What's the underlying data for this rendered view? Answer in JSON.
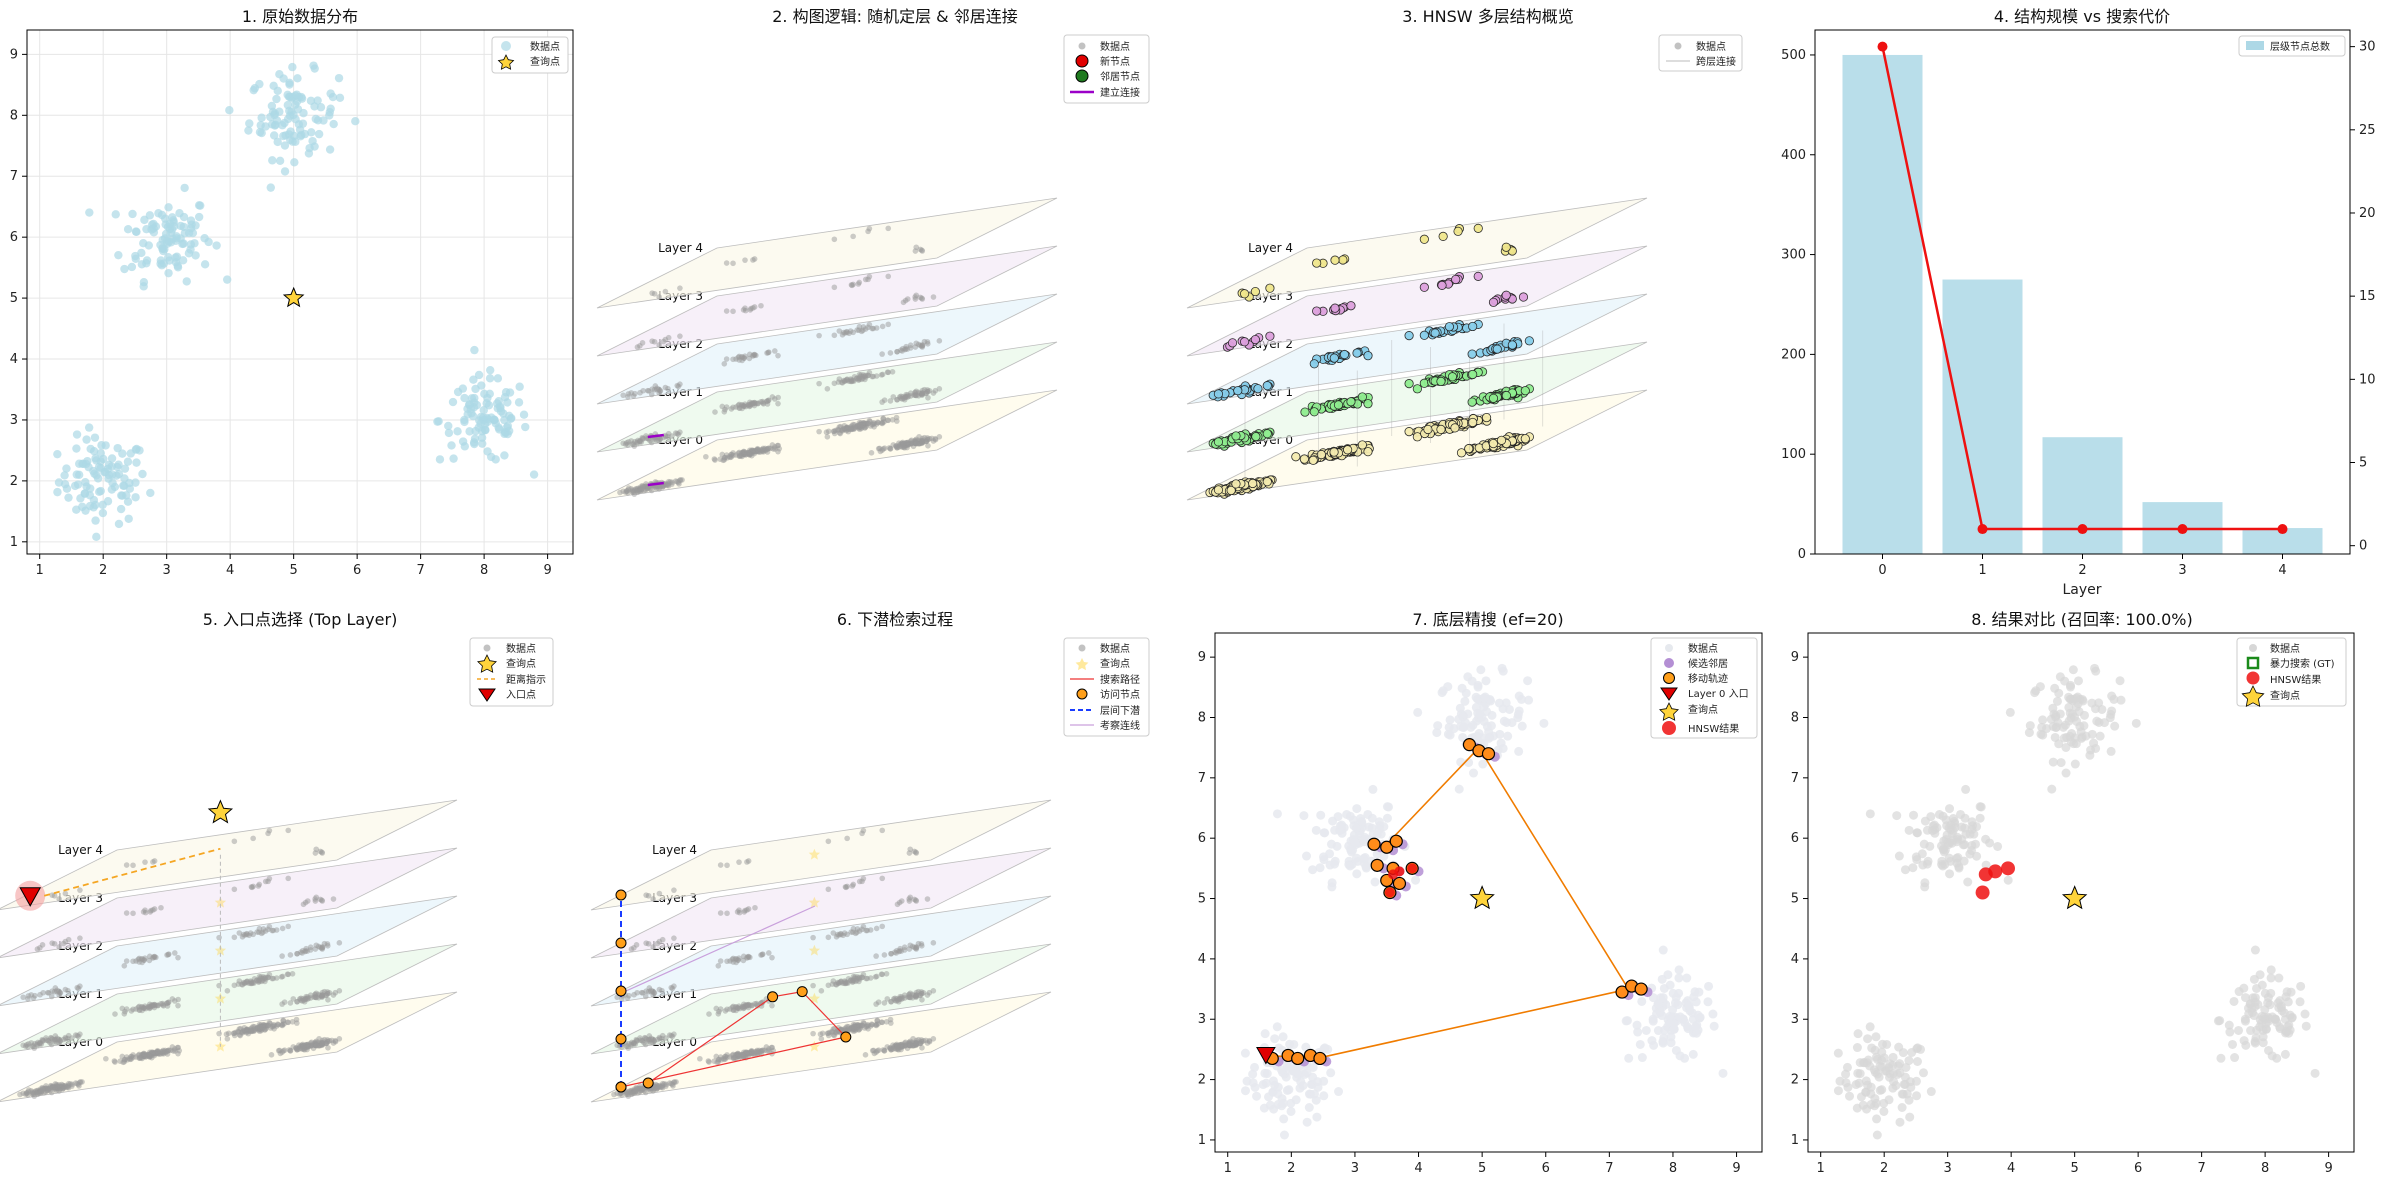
{
  "colors": {
    "data_point": "#add8e6",
    "gray_point": "#9a9a9a",
    "query_star": "#ffd43b",
    "path_orange": "#ff8c1a",
    "new_node": "#e00000",
    "neighbor_node": "#1f7a1f",
    "connect_line": "#9b00c8",
    "bar": "#add8e6",
    "cost_line": "#ee1111",
    "layer_fills": [
      "#fffbe5",
      "#e6f7e6",
      "#e4f2fa",
      "#f3e8f6",
      "#fbf8e8"
    ]
  },
  "layer_labels": [
    "Layer 0",
    "Layer 1",
    "Layer 2",
    "Layer 3",
    "Layer 4"
  ],
  "panels": {
    "p1": {
      "title": "1. 原始数据分布",
      "legend": [
        "数据点",
        "查询点"
      ],
      "x_ticks": [
        "1",
        "2",
        "3",
        "4",
        "5",
        "6",
        "7",
        "8",
        "9"
      ],
      "y_ticks": [
        "1",
        "2",
        "3",
        "4",
        "5",
        "6",
        "7",
        "8",
        "9"
      ]
    },
    "p2": {
      "title": "2. 构图逻辑: 随机定层 & 邻居连接",
      "legend": [
        "数据点",
        "新节点",
        "邻居节点",
        "建立连接"
      ]
    },
    "p3": {
      "title": "3. HNSW 多层结构概览",
      "legend": [
        "数据点",
        "跨层连接"
      ]
    },
    "p4": {
      "title": "4. 结构规模 vs 搜索代价",
      "legend": [
        "层级节点总数"
      ],
      "xlabel": "Layer",
      "x_ticks": [
        "0",
        "1",
        "2",
        "3",
        "4"
      ],
      "y_ticks": [
        "0",
        "100",
        "200",
        "300",
        "400",
        "500"
      ],
      "y2_ticks": [
        "0",
        "5",
        "10",
        "15",
        "20",
        "25",
        "30"
      ]
    },
    "p5": {
      "title": "5. 入口点选择 (Top Layer)",
      "legend": [
        "数据点",
        "查询点",
        "距离指示",
        "入口点"
      ]
    },
    "p6": {
      "title": "6. 下潜检索过程",
      "legend": [
        "数据点",
        "查询点",
        "搜索路径",
        "访问节点",
        "层间下潜",
        "考察连线"
      ]
    },
    "p7": {
      "title": "7. 底层精搜 (ef=20)",
      "legend": [
        "数据点",
        "候选邻居",
        "移动轨迹",
        "Layer 0 入口",
        "查询点",
        "HNSW结果"
      ],
      "x_ticks": [
        "1",
        "2",
        "3",
        "4",
        "5",
        "6",
        "7",
        "8",
        "9"
      ],
      "y_ticks": [
        "1",
        "2",
        "3",
        "4",
        "5",
        "6",
        "7",
        "8",
        "9"
      ]
    },
    "p8": {
      "title": "8. 结果对比 (召回率: 100.0%)",
      "legend": [
        "数据点",
        "暴力搜索 (GT)",
        "HNSW结果",
        "查询点"
      ],
      "x_ticks": [
        "1",
        "2",
        "3",
        "4",
        "5",
        "6",
        "7",
        "8",
        "9"
      ],
      "y_ticks": [
        "1",
        "2",
        "3",
        "4",
        "5",
        "6",
        "7",
        "8",
        "9"
      ]
    }
  },
  "chart_data": [
    {
      "type": "scatter",
      "title": "1. 原始数据分布",
      "xlim": [
        0.8,
        9.4
      ],
      "ylim": [
        0.8,
        9.4
      ],
      "clusters": [
        {
          "center": [
            2,
            2
          ],
          "n": 100,
          "spread": 0.35
        },
        {
          "center": [
            3,
            6
          ],
          "n": 100,
          "spread": 0.35
        },
        {
          "center": [
            5,
            8
          ],
          "n": 100,
          "spread": 0.35
        },
        {
          "center": [
            8,
            3
          ],
          "n": 100,
          "spread": 0.35
        }
      ],
      "query": [
        5,
        5
      ],
      "series": [
        {
          "name": "数据点"
        },
        {
          "name": "查询点"
        }
      ]
    },
    {
      "type": "bar",
      "title": "4. 结构规模 vs 搜索代价",
      "categories": [
        "0",
        "1",
        "2",
        "3",
        "4"
      ],
      "values": [
        500,
        275,
        117,
        52,
        26
      ],
      "line_values": [
        30,
        1,
        1,
        1,
        1
      ],
      "xlabel": "Layer",
      "ylim": [
        0,
        525
      ],
      "y2lim": [
        -0.5,
        31
      ]
    },
    {
      "type": "scatter",
      "title": "7. 底层精搜 (ef=20)",
      "xlim": [
        0.8,
        9.4
      ],
      "ylim": [
        0.8,
        9.4
      ],
      "query": [
        5,
        5
      ],
      "entry": [
        1.6,
        2.4
      ],
      "trajectory": [
        [
          1.6,
          2.4
        ],
        [
          2.4,
          2.35
        ],
        [
          7.3,
          3.5
        ],
        [
          4.95,
          7.5
        ],
        [
          3.5,
          5.9
        ]
      ],
      "visited": [
        [
          1.7,
          2.35
        ],
        [
          1.95,
          2.4
        ],
        [
          2.1,
          2.35
        ],
        [
          2.3,
          2.4
        ],
        [
          2.45,
          2.35
        ],
        [
          7.2,
          3.45
        ],
        [
          7.35,
          3.55
        ],
        [
          7.5,
          3.5
        ],
        [
          4.8,
          7.55
        ],
        [
          4.95,
          7.45
        ],
        [
          5.1,
          7.4
        ],
        [
          3.3,
          5.9
        ],
        [
          3.5,
          5.85
        ],
        [
          3.65,
          5.95
        ],
        [
          3.35,
          5.55
        ],
        [
          3.6,
          5.5
        ],
        [
          3.9,
          5.5
        ],
        [
          3.5,
          5.3
        ],
        [
          3.7,
          5.25
        ],
        [
          3.55,
          5.1
        ]
      ],
      "results": [
        [
          3.55,
          5.1
        ],
        [
          3.6,
          5.4
        ],
        [
          3.7,
          5.45
        ],
        [
          3.9,
          5.5
        ]
      ],
      "series": [
        {
          "name": "数据点"
        },
        {
          "name": "候选邻居"
        },
        {
          "name": "移动轨迹"
        },
        {
          "name": "Layer 0 入口"
        },
        {
          "name": "查询点"
        },
        {
          "name": "HNSW结果"
        }
      ]
    },
    {
      "type": "scatter",
      "title": "8. 结果对比 (召回率: 100.0%)",
      "xlim": [
        0.8,
        9.4
      ],
      "ylim": [
        0.8,
        9.4
      ],
      "query": [
        5,
        5
      ],
      "results": [
        [
          3.55,
          5.1
        ],
        [
          3.6,
          5.4
        ],
        [
          3.75,
          5.45
        ],
        [
          3.95,
          5.5
        ]
      ],
      "recall": 100.0,
      "series": [
        {
          "name": "数据点"
        },
        {
          "name": "暴力搜索 (GT)"
        },
        {
          "name": "HNSW结果"
        },
        {
          "name": "查询点"
        }
      ]
    }
  ]
}
